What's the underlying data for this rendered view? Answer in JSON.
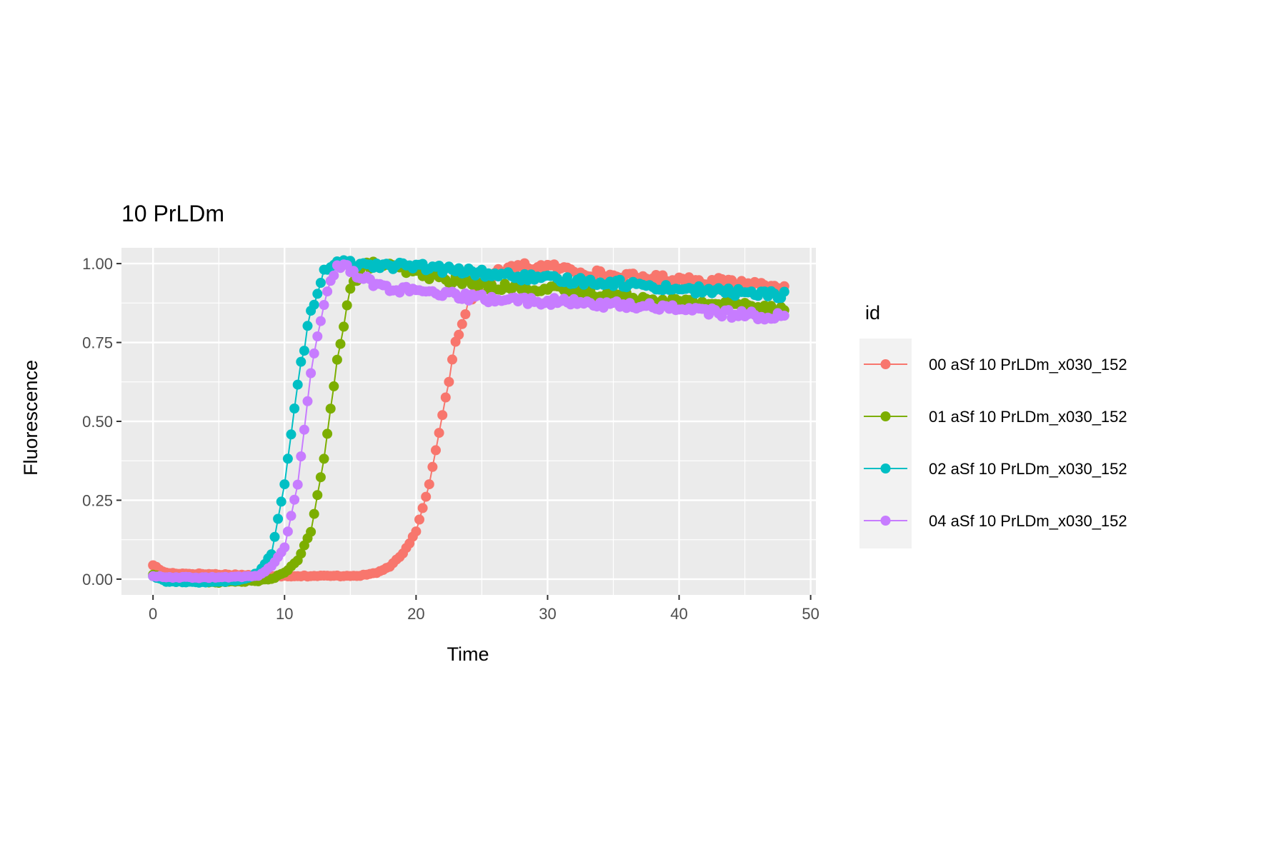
{
  "chart_data": {
    "type": "line",
    "title": "10 PrLDm",
    "xlabel": "Time",
    "ylabel": "Fluorescence",
    "xlim": [
      -2.4,
      50.4
    ],
    "ylim": [
      -0.05,
      1.05
    ],
    "x_ticks": [
      0,
      10,
      20,
      30,
      40,
      50
    ],
    "y_ticks": [
      0.0,
      0.25,
      0.5,
      0.75,
      1.0
    ],
    "x_tick_labels": [
      "0",
      "10",
      "20",
      "30",
      "40",
      "50"
    ],
    "y_tick_labels": [
      "0.00",
      "0.25",
      "0.50",
      "0.75",
      "1.00"
    ],
    "grid": true,
    "panel_background": "#ebebeb",
    "legend": {
      "title": "id",
      "position": "right"
    },
    "x_range_observed": [
      0,
      48
    ],
    "sample_interval": 0.25,
    "series": [
      {
        "name": "00 aSf 10 PrLDm_x030_152",
        "color": "#F8766D",
        "points": [
          [
            0,
            0.045
          ],
          [
            0.5,
            0.03
          ],
          [
            1,
            0.02
          ],
          [
            2,
            0.018
          ],
          [
            5,
            0.015
          ],
          [
            8,
            0.012
          ],
          [
            10,
            0.01
          ],
          [
            12,
            0.01
          ],
          [
            14,
            0.01
          ],
          [
            16,
            0.012
          ],
          [
            17,
            0.02
          ],
          [
            18,
            0.04
          ],
          [
            19,
            0.08
          ],
          [
            20,
            0.15
          ],
          [
            21,
            0.3
          ],
          [
            22,
            0.52
          ],
          [
            23,
            0.75
          ],
          [
            24,
            0.88
          ],
          [
            25,
            0.94
          ],
          [
            26,
            0.97
          ],
          [
            28,
            0.99
          ],
          [
            30,
            0.99
          ],
          [
            35,
            0.96
          ],
          [
            40,
            0.95
          ],
          [
            44,
            0.94
          ],
          [
            48,
            0.93
          ]
        ]
      },
      {
        "name": "01 aSf 10 PrLDm_x030_152",
        "color": "#7CAE00",
        "points": [
          [
            0,
            0.015
          ],
          [
            1,
            -0.005
          ],
          [
            5,
            -0.01
          ],
          [
            8,
            -0.005
          ],
          [
            9,
            0.0
          ],
          [
            10,
            0.02
          ],
          [
            11,
            0.06
          ],
          [
            12,
            0.15
          ],
          [
            13,
            0.38
          ],
          [
            14,
            0.7
          ],
          [
            15,
            0.92
          ],
          [
            16,
            0.99
          ],
          [
            17,
            1.0
          ],
          [
            20,
            0.97
          ],
          [
            25,
            0.93
          ],
          [
            30,
            0.92
          ],
          [
            35,
            0.9
          ],
          [
            40,
            0.88
          ],
          [
            44,
            0.87
          ],
          [
            48,
            0.86
          ]
        ]
      },
      {
        "name": "02 aSf 10 PrLDm_x030_152",
        "color": "#00BFC4",
        "points": [
          [
            0,
            0.01
          ],
          [
            1,
            -0.008
          ],
          [
            5,
            -0.01
          ],
          [
            7,
            0.0
          ],
          [
            8,
            0.02
          ],
          [
            9,
            0.08
          ],
          [
            10,
            0.3
          ],
          [
            11,
            0.62
          ],
          [
            12,
            0.85
          ],
          [
            13,
            0.97
          ],
          [
            14,
            1.0
          ],
          [
            16,
            1.0
          ],
          [
            20,
            0.99
          ],
          [
            25,
            0.97
          ],
          [
            30,
            0.95
          ],
          [
            35,
            0.94
          ],
          [
            40,
            0.92
          ],
          [
            44,
            0.91
          ],
          [
            48,
            0.9
          ]
        ]
      },
      {
        "name": "04 aSf 10 PrLDm_x030_152",
        "color": "#C77CFF",
        "points": [
          [
            0,
            0.01
          ],
          [
            1,
            0.005
          ],
          [
            5,
            0.005
          ],
          [
            8,
            0.01
          ],
          [
            9,
            0.04
          ],
          [
            10,
            0.1
          ],
          [
            11,
            0.3
          ],
          [
            12,
            0.65
          ],
          [
            13,
            0.88
          ],
          [
            14,
            1.0
          ],
          [
            15,
            0.98
          ],
          [
            17,
            0.93
          ],
          [
            20,
            0.91
          ],
          [
            25,
            0.89
          ],
          [
            30,
            0.88
          ],
          [
            35,
            0.87
          ],
          [
            40,
            0.86
          ],
          [
            44,
            0.84
          ],
          [
            48,
            0.83
          ]
        ]
      }
    ]
  }
}
